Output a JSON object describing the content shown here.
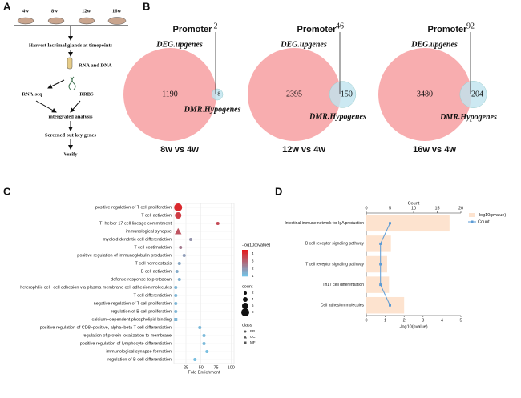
{
  "panel_labels": [
    "A",
    "B",
    "C",
    "D"
  ],
  "diagram": {
    "timepoints": [
      "4w",
      "8w",
      "12w",
      "16w"
    ],
    "steps": [
      "Harvest lacrimal glands at timepoints",
      "RNA and DNA",
      "RNA-seq",
      "RRBS",
      "intergrated analysis",
      "Screened out key genes",
      "Verify"
    ]
  },
  "chart_data": [
    {
      "type": "venn",
      "title": "Promoter",
      "sets": [
        "DEG.upgenes",
        "DMR.Hypogenes"
      ],
      "values": [
        1190,
        2,
        8
      ],
      "colors": [
        "#f7a4a6",
        "#bfe4ef"
      ],
      "caption": "8w vs 4w"
    },
    {
      "type": "venn",
      "title": "Promoter",
      "sets": [
        "DEG.upgenes",
        "DMR.Hypogenes"
      ],
      "values": [
        2395,
        46,
        150
      ],
      "colors": [
        "#f7a4a6",
        "#bfe4ef"
      ],
      "caption": "12w vs 4w"
    },
    {
      "type": "venn",
      "title": "Promoter",
      "sets": [
        "DEG.upgenes",
        "DMR.Hypogenes"
      ],
      "values": [
        3480,
        92,
        204
      ],
      "colors": [
        "#f7a4a6",
        "#bfe4ef"
      ],
      "caption": "16w vs 4w"
    },
    {
      "type": "dot",
      "categories": [
        "positive regulation of T cell proliferation",
        "T cell activation",
        "T−helper 17 cell lineage commitment",
        "immunological synapse",
        "myeloid dendritic cell differentiation",
        "T cell costimulation",
        "positive regulation of immunoglobulin production",
        "T cell homeostasis",
        "B cell activation",
        "defense response to protozoan",
        "heterophilic cell−cell adhesion via plasma membrane cell adhesion molecules",
        "T cell differentiation",
        "negative regulation of T cell proliferation",
        "regulation of B cell proliferation",
        "calcium−dependent phospholipid binding",
        "positive regulation of CD8−positive, alpha−beta T cell differentiation",
        "regulation of protein localization to membrane",
        "positive regulation of lymphocyte differentiation",
        "immunological synapse formation",
        "regulation of B cell differentiation"
      ],
      "x": [
        12,
        12,
        78,
        12,
        33,
        16,
        22,
        14,
        10,
        14,
        8,
        8,
        8,
        8,
        8,
        48,
        55,
        55,
        60,
        40
      ],
      "pvalue": [
        4.2,
        3.8,
        3.5,
        3.3,
        2.0,
        2.5,
        1.8,
        1.6,
        1.5,
        1.4,
        1.3,
        1.3,
        1.3,
        1.3,
        1.3,
        1.2,
        1.2,
        1.2,
        1.1,
        1.1
      ],
      "count": [
        8,
        6,
        2,
        5,
        2,
        2,
        2,
        2,
        2,
        2,
        2,
        2,
        2,
        2,
        2,
        2,
        2,
        2,
        2,
        2
      ],
      "class": [
        "BP",
        "BP",
        "BP",
        "CC",
        "BP",
        "BP",
        "BP",
        "BP",
        "BP",
        "BP",
        "BP",
        "BP",
        "BP",
        "BP",
        "MF",
        "BP",
        "BP",
        "BP",
        "BP",
        "BP"
      ],
      "xlabel": "Fold Enrichment",
      "xlim": [
        5,
        105
      ],
      "xticks": [
        25,
        50,
        75,
        100
      ],
      "grid": true,
      "color_title": "-log10(pvalue)",
      "color_scale": [
        "#74c3e6",
        "#e41a1c"
      ],
      "clim": [
        1,
        4.5
      ],
      "cticks": [
        1,
        2,
        3,
        4
      ],
      "size_title": "count",
      "size_ticks": [
        2,
        4,
        6,
        8
      ],
      "class_title": "class",
      "classes": [
        "BP",
        "CC",
        "MF"
      ]
    },
    {
      "type": "bar_line",
      "categories": [
        "Intestinal immune network for IgA production",
        "B cell receptor signaling pathway",
        "T cell receptor signaling pathway",
        "Th17 cell differentiation",
        "Cell adhesion molecules"
      ],
      "series": [
        {
          "name": "-log10(pvalue)",
          "color": "#fde3cf",
          "values": [
            4.4,
            1.3,
            1.1,
            1.2,
            2.0
          ]
        },
        {
          "name": "Count",
          "color": "#5b9bd5",
          "values": [
            5,
            3,
            3,
            3,
            5
          ],
          "axis": "x2"
        }
      ],
      "xlabel": "-log10(pvalue)",
      "x2label": "Count",
      "xlim": [
        0,
        5
      ],
      "xticks": [
        0,
        1,
        2,
        3,
        4,
        5
      ],
      "x2lim": [
        0,
        20
      ],
      "x2ticks": [
        0,
        5,
        10,
        15,
        20
      ]
    }
  ]
}
